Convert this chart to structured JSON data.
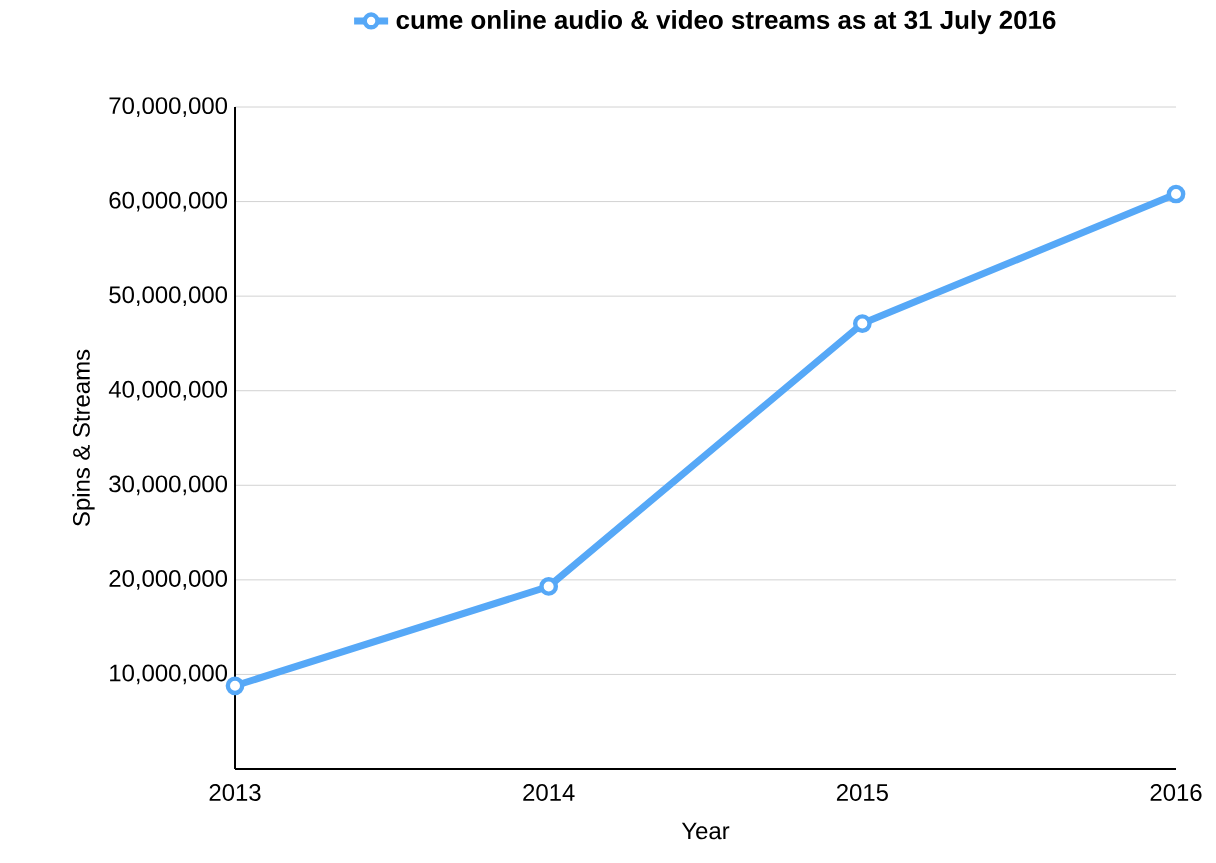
{
  "chart_data": {
    "type": "line",
    "xlabel": "Year",
    "ylabel": "Spins & Streams",
    "x": [
      2013,
      2014,
      2015,
      2016
    ],
    "series": [
      {
        "name": "cume online audio & video streams as at 31 July 2016",
        "color": "#56a8f7",
        "values": [
          8800000,
          19300000,
          47100000,
          60800000
        ]
      }
    ],
    "xlim": [
      2013,
      2016
    ],
    "ylim": [
      0,
      70000000
    ],
    "xticks": [
      2013,
      2014,
      2015,
      2016
    ],
    "yticks": [
      {
        "value": 10000000,
        "label": "10,000,000"
      },
      {
        "value": 20000000,
        "label": "20,000,000"
      },
      {
        "value": 30000000,
        "label": "30,000,000"
      },
      {
        "value": 40000000,
        "label": "40,000,000"
      },
      {
        "value": 50000000,
        "label": "50,000,000"
      },
      {
        "value": 60000000,
        "label": "60,000,000"
      },
      {
        "value": 70000000,
        "label": "70,000,000"
      }
    ],
    "grid": "y",
    "legend": "top",
    "marker": "circle",
    "line_style": "solid"
  }
}
